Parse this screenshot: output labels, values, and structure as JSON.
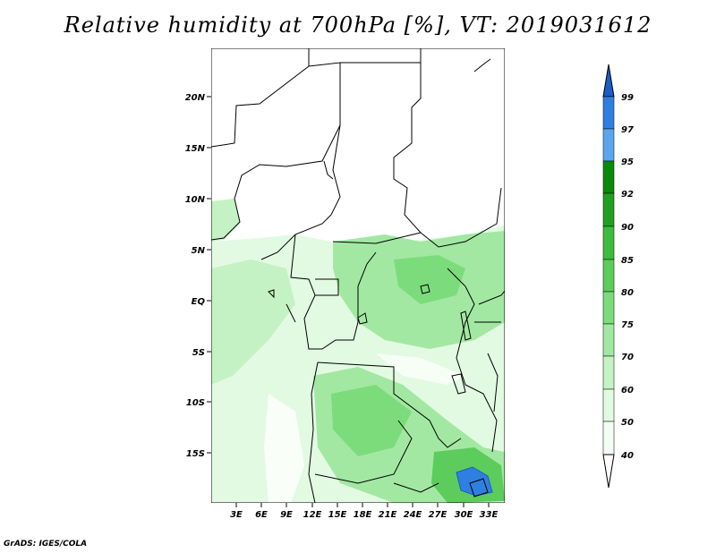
{
  "title": "Relative humidity at 700hPa [%], VT: 2019031612",
  "credit": "GrADS: IGES/COLA",
  "map": {
    "lat_labels": [
      "20N",
      "15N",
      "10N",
      "5N",
      "EQ",
      "5S",
      "10S",
      "15S"
    ],
    "lon_labels": [
      "3E",
      "6E",
      "9E",
      "12E",
      "15E",
      "18E",
      "21E",
      "24E",
      "27E",
      "30E",
      "33E"
    ]
  },
  "colorbar": {
    "labels": [
      "99",
      "97",
      "95",
      "92",
      "90",
      "85",
      "80",
      "75",
      "70",
      "60",
      "50",
      "40"
    ],
    "colors": [
      "#1c5cc6",
      "#2f7fe0",
      "#5aa6ee",
      "#0a8a0a",
      "#20a020",
      "#3cbc3c",
      "#5ccc5c",
      "#7cdc7c",
      "#a2e8a2",
      "#c4f2c4",
      "#e2fae2",
      "#ffffff"
    ]
  },
  "colors": {
    "land_green_light": "#e2fae2",
    "land_green_mid": "#a2e8a2",
    "land_green_dark": "#5ccc5c",
    "high_blue": "#2f7fe0"
  }
}
